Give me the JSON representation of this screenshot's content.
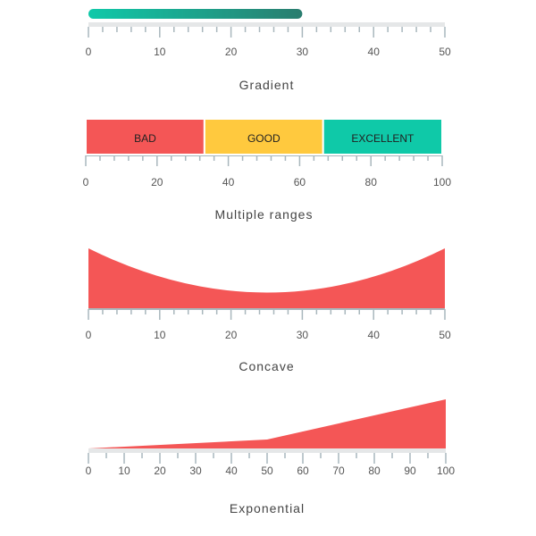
{
  "chart_data": [
    {
      "type": "linear-gauge",
      "title": "Gradient",
      "axis": {
        "min": 0,
        "max": 50,
        "major_interval": 10,
        "minor_interval": 2
      },
      "tick_labels": [
        "0",
        "10",
        "20",
        "30",
        "40",
        "50"
      ],
      "bar_pointer": {
        "value": 30,
        "gradient": [
          "#10C9A9",
          "#2A7D6F"
        ]
      },
      "axis_line_color": "#E5E7E8",
      "tick_color": "#A9B7BD"
    },
    {
      "type": "linear-gauge",
      "title": "Multiple ranges",
      "axis": {
        "min": 0,
        "max": 100,
        "major_interval": 20,
        "minor_interval": 4
      },
      "tick_labels": [
        "0",
        "20",
        "40",
        "60",
        "80",
        "100"
      ],
      "ranges": [
        {
          "start": 0,
          "end": 33.3,
          "label": "BAD",
          "color": "#F45656"
        },
        {
          "start": 33.3,
          "end": 66.6,
          "label": "GOOD",
          "color": "#FFC93E"
        },
        {
          "start": 66.6,
          "end": 100,
          "label": "EXCELLENT",
          "color": "#0FC9A8"
        }
      ],
      "tick_color": "#A9B7BD"
    },
    {
      "type": "linear-gauge",
      "title": "Concave",
      "axis": {
        "min": 0,
        "max": 50,
        "major_interval": 10,
        "minor_interval": 2
      },
      "tick_labels": [
        "0",
        "10",
        "20",
        "30",
        "40",
        "50"
      ],
      "range": {
        "start": 0,
        "end": 50,
        "shape": "concave",
        "color": "#F45656"
      },
      "tick_color": "#A9B7BD"
    },
    {
      "type": "linear-gauge",
      "title": "Exponential",
      "axis": {
        "min": 0,
        "max": 100,
        "major_interval": 10,
        "minor_interval": 5
      },
      "tick_labels": [
        "0",
        "10",
        "20",
        "30",
        "40",
        "50",
        "60",
        "70",
        "80",
        "90",
        "100"
      ],
      "ranges": [
        {
          "start": 0,
          "end": 50,
          "start_width": 0,
          "end_width": 10,
          "color": "#F45656"
        },
        {
          "start": 50,
          "end": 100,
          "start_width": 10,
          "end_width": 55,
          "color": "#F45656"
        }
      ],
      "axis_line_color": "#E5E7E8",
      "tick_color": "#A9B7BD"
    }
  ]
}
